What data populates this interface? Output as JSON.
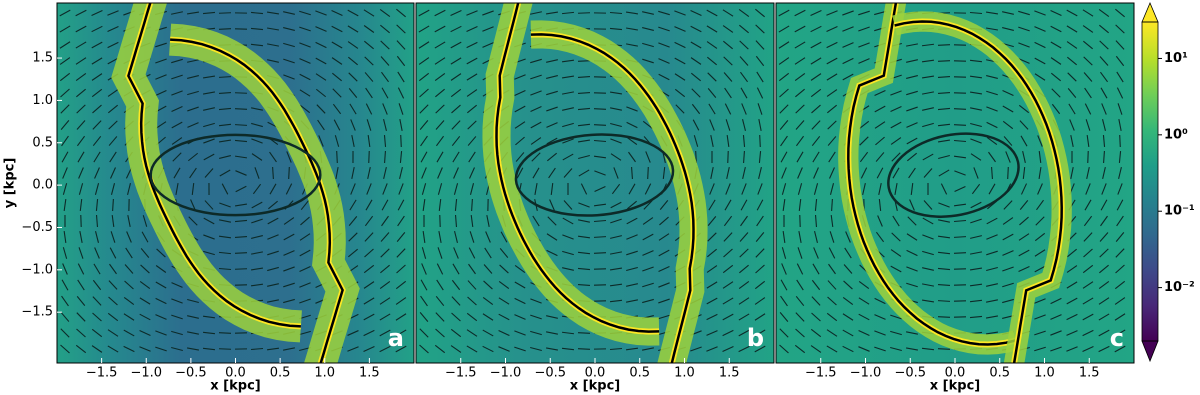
{
  "chart_data": [
    {
      "type": "image",
      "xlabel": "x [kpc]",
      "ylabel": "y [kpc]",
      "panel_label": "a",
      "xlim": [
        -2,
        2
      ],
      "ylim": [
        -2.1,
        2.15
      ],
      "xticks": [
        {
          "value": -1.5,
          "label": "−1.5"
        },
        {
          "value": -1.0,
          "label": "−1.0"
        },
        {
          "value": -0.5,
          "label": "−0.5"
        },
        {
          "value": 0.0,
          "label": "0.0"
        },
        0.5,
        {
          "value": 1.0,
          "label": "1.0"
        },
        1.5
      ],
      "yticks": [
        {
          "value": -1.5,
          "label": "−1.5"
        },
        {
          "value": -1.0,
          "label": "−1.0"
        },
        {
          "value": -0.5,
          "label": "−0.5"
        },
        {
          "value": 0.0,
          "label": "0.0"
        },
        0.5,
        {
          "value": 1.0,
          "label": "1.0"
        },
        1.5
      ]
    },
    {
      "type": "image",
      "xlabel": "x [kpc]",
      "panel_label": "b",
      "xlim": [
        -2,
        2
      ],
      "ylim": [
        -2.1,
        2.15
      ],
      "xticks": [
        {
          "value": -1.5,
          "label": "−1.5"
        },
        {
          "value": -1.0,
          "label": "−1.0"
        },
        {
          "value": -0.5,
          "label": "−0.5"
        },
        {
          "value": 0.0,
          "label": "0.0"
        },
        0.5,
        {
          "value": 1.0,
          "label": "1.0"
        },
        1.5
      ]
    },
    {
      "type": "image",
      "xlabel": "x [kpc]",
      "panel_label": "c",
      "xlim": [
        -2,
        2
      ],
      "ylim": [
        -2.1,
        2.15
      ],
      "xticks": [
        {
          "value": -1.5,
          "label": "−1.5"
        },
        {
          "value": -1.0,
          "label": "−1.0"
        },
        {
          "value": -0.5,
          "label": "−0.5"
        },
        {
          "value": 0.0,
          "label": "0.0"
        },
        0.5,
        {
          "value": 1.0,
          "label": "1.0"
        },
        1.5
      ]
    },
    {
      "type": "colorbar",
      "log_scale": true,
      "lim": [
        0.002,
        30
      ],
      "ticks": [
        {
          "value": 10,
          "label": "10¹"
        },
        {
          "value": 1,
          "label": "10⁰"
        },
        {
          "value": 0.1,
          "label": "10⁻¹"
        },
        {
          "value": 0.01,
          "label": "10⁻²"
        }
      ]
    }
  ]
}
